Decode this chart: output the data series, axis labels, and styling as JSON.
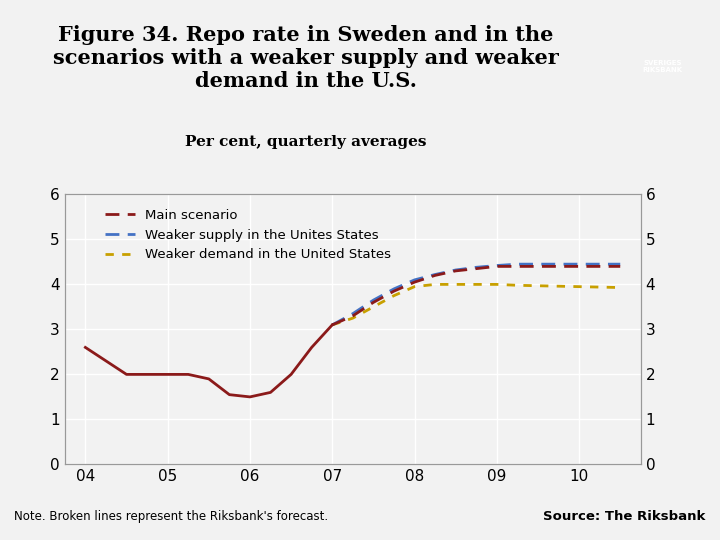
{
  "title_line1": "Figure 34. Repo rate in Sweden and in the",
  "title_line2": "scenarios with a weaker supply and weaker",
  "title_line3": "demand in the U.S.",
  "subtitle": "Per cent, quarterly averages",
  "title_fontsize": 15,
  "subtitle_fontsize": 11,
  "note_text": "Note. Broken lines represent the Riksbank's forecast.",
  "source_text": "Source: The Riksbank",
  "footer_bar_color": "#1F4E8C",
  "ylim": [
    0,
    6
  ],
  "yticks": [
    0,
    1,
    2,
    3,
    4,
    5,
    6
  ],
  "xticks": [
    4,
    5,
    6,
    7,
    8,
    9,
    10
  ],
  "xticklabels": [
    "04",
    "05",
    "06",
    "07",
    "08",
    "09",
    "10"
  ],
  "main_solid_x": [
    4.0,
    4.5,
    5.0,
    5.25,
    5.5,
    5.75,
    6.0,
    6.25,
    6.5,
    6.75,
    7.0
  ],
  "main_solid_y": [
    2.6,
    2.0,
    2.0,
    2.0,
    1.9,
    1.55,
    1.5,
    1.6,
    2.0,
    2.6,
    3.1
  ],
  "main_dashed_x": [
    7.0,
    7.25,
    7.5,
    7.75,
    8.0,
    8.25,
    8.5,
    8.75,
    9.0,
    9.25,
    9.5,
    9.75,
    10.0,
    10.25,
    10.5
  ],
  "main_dashed_y": [
    3.1,
    3.3,
    3.6,
    3.85,
    4.05,
    4.2,
    4.3,
    4.35,
    4.4,
    4.4,
    4.4,
    4.4,
    4.4,
    4.4,
    4.4
  ],
  "supply_dashed_x": [
    7.0,
    7.25,
    7.5,
    7.75,
    8.0,
    8.25,
    8.5,
    8.75,
    9.0,
    9.25,
    9.5,
    9.75,
    10.0,
    10.25,
    10.5
  ],
  "supply_dashed_y": [
    3.1,
    3.35,
    3.65,
    3.9,
    4.1,
    4.22,
    4.32,
    4.38,
    4.42,
    4.45,
    4.45,
    4.45,
    4.45,
    4.45,
    4.45
  ],
  "demand_dashed_x": [
    7.0,
    7.25,
    7.5,
    7.75,
    8.0,
    8.25,
    8.5,
    8.75,
    9.0,
    9.25,
    9.5,
    9.75,
    10.0,
    10.25,
    10.5
  ],
  "demand_dashed_y": [
    3.1,
    3.25,
    3.5,
    3.75,
    3.95,
    4.0,
    4.0,
    4.0,
    4.0,
    3.98,
    3.97,
    3.96,
    3.95,
    3.94,
    3.93
  ],
  "main_color": "#8B1A1A",
  "supply_color": "#4472C4",
  "demand_color": "#C8A000",
  "legend_labels": [
    "Main scenario",
    "Weaker supply in the Unites States",
    "Weaker demand in the United States"
  ],
  "background_color": "#F2F2F2",
  "grid_color": "#FFFFFF",
  "legend_fontsize": 9.5,
  "tick_fontsize": 11
}
